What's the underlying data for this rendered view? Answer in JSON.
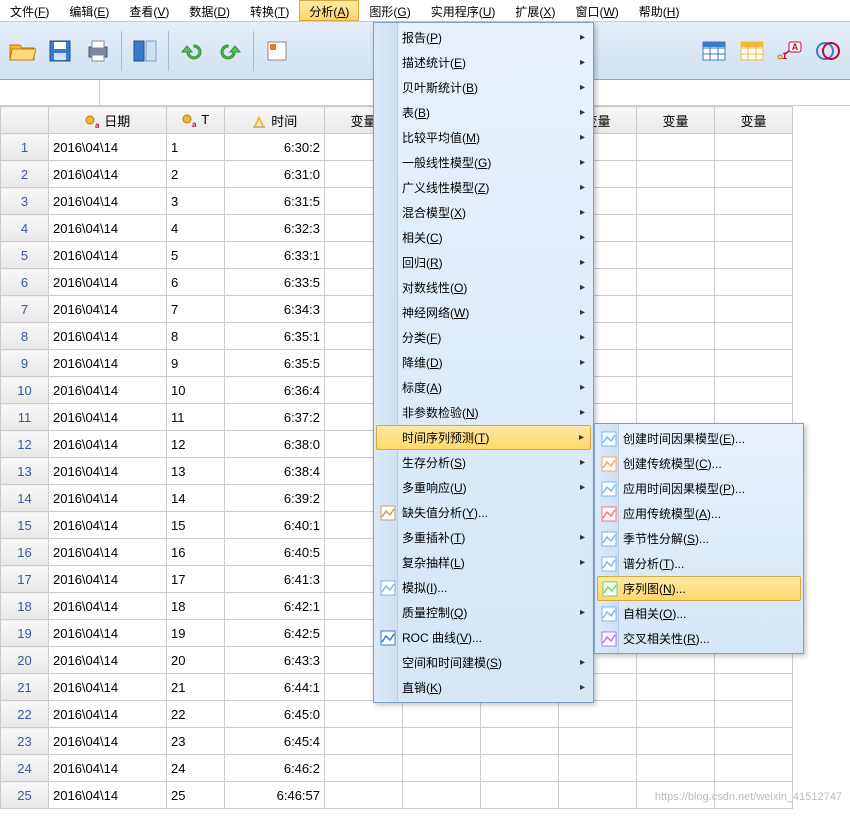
{
  "menubar": [
    {
      "label": "文件",
      "mn": "F"
    },
    {
      "label": "编辑",
      "mn": "E"
    },
    {
      "label": "查看",
      "mn": "V"
    },
    {
      "label": "数据",
      "mn": "D"
    },
    {
      "label": "转换",
      "mn": "T"
    },
    {
      "label": "分析",
      "mn": "A",
      "active": true
    },
    {
      "label": "图形",
      "mn": "G"
    },
    {
      "label": "实用程序",
      "mn": "U"
    },
    {
      "label": "扩展",
      "mn": "X"
    },
    {
      "label": "窗口",
      "mn": "W"
    },
    {
      "label": "帮助",
      "mn": "H"
    }
  ],
  "columns": {
    "date": "日期",
    "t": "T",
    "time": "时间",
    "var": "变量"
  },
  "rows": [
    {
      "n": 1,
      "date": "2016\\04\\14",
      "t": "1",
      "time": "6:30:2"
    },
    {
      "n": 2,
      "date": "2016\\04\\14",
      "t": "2",
      "time": "6:31:0"
    },
    {
      "n": 3,
      "date": "2016\\04\\14",
      "t": "3",
      "time": "6:31:5"
    },
    {
      "n": 4,
      "date": "2016\\04\\14",
      "t": "4",
      "time": "6:32:3"
    },
    {
      "n": 5,
      "date": "2016\\04\\14",
      "t": "5",
      "time": "6:33:1"
    },
    {
      "n": 6,
      "date": "2016\\04\\14",
      "t": "6",
      "time": "6:33:5"
    },
    {
      "n": 7,
      "date": "2016\\04\\14",
      "t": "7",
      "time": "6:34:3"
    },
    {
      "n": 8,
      "date": "2016\\04\\14",
      "t": "8",
      "time": "6:35:1"
    },
    {
      "n": 9,
      "date": "2016\\04\\14",
      "t": "9",
      "time": "6:35:5"
    },
    {
      "n": 10,
      "date": "2016\\04\\14",
      "t": "10",
      "time": "6:36:4"
    },
    {
      "n": 11,
      "date": "2016\\04\\14",
      "t": "11",
      "time": "6:37:2"
    },
    {
      "n": 12,
      "date": "2016\\04\\14",
      "t": "12",
      "time": "6:38:0"
    },
    {
      "n": 13,
      "date": "2016\\04\\14",
      "t": "13",
      "time": "6:38:4"
    },
    {
      "n": 14,
      "date": "2016\\04\\14",
      "t": "14",
      "time": "6:39:2"
    },
    {
      "n": 15,
      "date": "2016\\04\\14",
      "t": "15",
      "time": "6:40:1"
    },
    {
      "n": 16,
      "date": "2016\\04\\14",
      "t": "16",
      "time": "6:40:5"
    },
    {
      "n": 17,
      "date": "2016\\04\\14",
      "t": "17",
      "time": "6:41:3"
    },
    {
      "n": 18,
      "date": "2016\\04\\14",
      "t": "18",
      "time": "6:42:1"
    },
    {
      "n": 19,
      "date": "2016\\04\\14",
      "t": "19",
      "time": "6:42:5"
    },
    {
      "n": 20,
      "date": "2016\\04\\14",
      "t": "20",
      "time": "6:43:3"
    },
    {
      "n": 21,
      "date": "2016\\04\\14",
      "t": "21",
      "time": "6:44:1"
    },
    {
      "n": 22,
      "date": "2016\\04\\14",
      "t": "22",
      "time": "6:45:0"
    },
    {
      "n": 23,
      "date": "2016\\04\\14",
      "t": "23",
      "time": "6:45:4"
    },
    {
      "n": 24,
      "date": "2016\\04\\14",
      "t": "24",
      "time": "6:46:2"
    },
    {
      "n": 25,
      "date": "2016\\04\\14",
      "t": "25",
      "time": "6:46:57"
    }
  ],
  "analysis_menu": [
    {
      "label": "报告",
      "mn": "P",
      "sub": true
    },
    {
      "label": "描述统计",
      "mn": "E",
      "sub": true
    },
    {
      "label": "贝叶斯统计",
      "mn": "B",
      "sub": true
    },
    {
      "label": "表",
      "mn": "B",
      "sub": true
    },
    {
      "label": "比较平均值",
      "mn": "M",
      "sub": true
    },
    {
      "label": "一般线性模型",
      "mn": "G",
      "sub": true
    },
    {
      "label": "广义线性模型",
      "mn": "Z",
      "sub": true
    },
    {
      "label": "混合模型",
      "mn": "X",
      "sub": true
    },
    {
      "label": "相关",
      "mn": "C",
      "sub": true
    },
    {
      "label": "回归",
      "mn": "R",
      "sub": true
    },
    {
      "label": "对数线性",
      "mn": "O",
      "sub": true
    },
    {
      "label": "神经网络",
      "mn": "W",
      "sub": true
    },
    {
      "label": "分类",
      "mn": "F",
      "sub": true
    },
    {
      "label": "降维",
      "mn": "D",
      "sub": true
    },
    {
      "label": "标度",
      "mn": "A",
      "sub": true
    },
    {
      "label": "非参数检验",
      "mn": "N",
      "sub": true
    },
    {
      "label": "时间序列预测",
      "mn": "T",
      "sub": true,
      "hl": true
    },
    {
      "label": "生存分析",
      "mn": "S",
      "sub": true
    },
    {
      "label": "多重响应",
      "mn": "U",
      "sub": true
    },
    {
      "label": "缺失值分析",
      "mn": "Y",
      "sub": false,
      "icon": "missing",
      "ell": true
    },
    {
      "label": "多重插补",
      "mn": "T",
      "sub": true
    },
    {
      "label": "复杂抽样",
      "mn": "L",
      "sub": true
    },
    {
      "label": "模拟",
      "mn": "I",
      "sub": false,
      "icon": "sim",
      "ell": true
    },
    {
      "label": "质量控制",
      "mn": "Q",
      "sub": true
    },
    {
      "label": "ROC 曲线",
      "mn": "V",
      "sub": false,
      "icon": "roc",
      "ell": true
    },
    {
      "label": "空间和时间建模",
      "mn": "S",
      "sub": true
    },
    {
      "label": "直销",
      "mn": "K",
      "sub": true
    }
  ],
  "ts_submenu": [
    {
      "label": "创建时间因果模型",
      "mn": "E",
      "ell": true,
      "icon": "a"
    },
    {
      "label": "创建传统模型",
      "mn": "C",
      "ell": true,
      "icon": "b"
    },
    {
      "label": "应用时间因果模型",
      "mn": "P",
      "ell": true,
      "icon": "c"
    },
    {
      "label": "应用传统模型",
      "mn": "A",
      "ell": true,
      "icon": "d"
    },
    {
      "label": "季节性分解",
      "mn": "S",
      "ell": true,
      "icon": "e"
    },
    {
      "label": "谱分析",
      "mn": "T",
      "ell": true,
      "icon": "f"
    },
    {
      "label": "序列图",
      "mn": "N",
      "ell": true,
      "icon": "g",
      "hl": true
    },
    {
      "label": "自相关",
      "mn": "O",
      "ell": true,
      "icon": "h"
    },
    {
      "label": "交叉相关性",
      "mn": "R",
      "ell": true,
      "icon": "i"
    }
  ],
  "watermark": "https://blog.csdn.net/weixin_41512747",
  "colors": {
    "menu_bg_top": "#e8f1fb",
    "menu_bg_bot": "#d5e6f7",
    "hl_top": "#ffe9a6",
    "hl_bot": "#ffd86b",
    "border": "#7ea0c4"
  }
}
